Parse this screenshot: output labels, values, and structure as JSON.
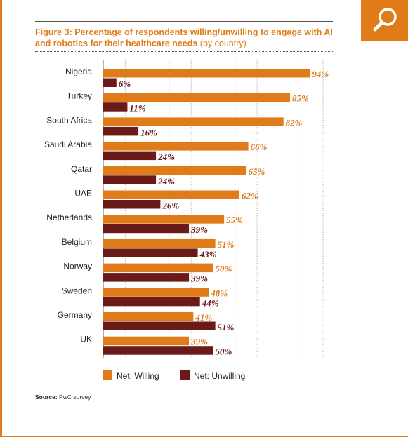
{
  "header": {
    "title": "Figure 3: Percentage of respondents willing/unwilling to engage with AI and robotics for their healthcare needs",
    "title_suffix": "(by country)"
  },
  "toolbar": {
    "search_icon": "search-icon"
  },
  "colors": {
    "willing": "#e07b1a",
    "unwilling": "#6b1a1a",
    "accent": "#e07b1a"
  },
  "chart_data": {
    "type": "bar",
    "orientation": "horizontal",
    "categories": [
      "Nigeria",
      "Turkey",
      "South Africa",
      "Saudi Arabia",
      "Qatar",
      "UAE",
      "Netherlands",
      "Belgium",
      "Norway",
      "Sweden",
      "Germany",
      "UK"
    ],
    "series": [
      {
        "name": "Net: Willing",
        "values": [
          94,
          85,
          82,
          66,
          65,
          62,
          55,
          51,
          50,
          48,
          41,
          39
        ]
      },
      {
        "name": "Net: Unwilling",
        "values": [
          6,
          11,
          16,
          24,
          24,
          26,
          39,
          43,
          39,
          44,
          51,
          50
        ]
      }
    ],
    "value_labels": {
      "willing": [
        "94%",
        "85%",
        "82%",
        "66%",
        "65%",
        "62%",
        "55%",
        "51%",
        "50%",
        "48%",
        "41%",
        "39%"
      ],
      "unwilling": [
        "6%",
        "11%",
        "16%",
        "24%",
        "24%",
        "26%",
        "39%",
        "43%",
        "39%",
        "44%",
        "51%",
        "50%"
      ]
    },
    "xlim": [
      0,
      100
    ],
    "grid": true,
    "legend": "bottom-left"
  },
  "source": {
    "label": "Source:",
    "text": "PwC survey"
  }
}
